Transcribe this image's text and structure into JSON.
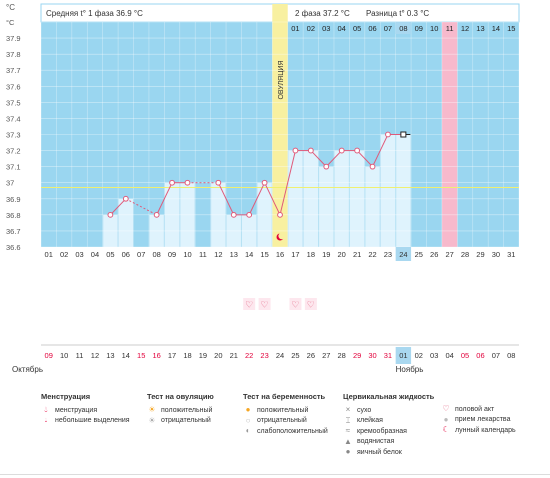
{
  "header": {
    "unit": "°C",
    "avg_phase1": "Средняя t° 1 фаза 36.9 °C",
    "phase2": "2 фаза 37.2 °C",
    "diff": "Разница t° 0.3 °C",
    "ovulation_label": "ОВУЛЯЦИЯ"
  },
  "cycle_days": [
    "01",
    "02",
    "03",
    "04",
    "05",
    "06",
    "07",
    "08",
    "09",
    "10",
    "11",
    "12",
    "13",
    "14",
    "15"
  ],
  "dates": [
    "01",
    "02",
    "03",
    "04",
    "05",
    "06",
    "07",
    "08",
    "09",
    "10",
    "11",
    "12",
    "13",
    "14",
    "15",
    "16",
    "17",
    "18",
    "19",
    "20",
    "21",
    "22",
    "23",
    "24",
    "25",
    "26",
    "27",
    "28",
    "29",
    "30",
    "31"
  ],
  "calendar_days": [
    "09",
    "10",
    "11",
    "12",
    "13",
    "14",
    "15",
    "16",
    "17",
    "18",
    "19",
    "20",
    "21",
    "22",
    "23",
    "24",
    "25",
    "26",
    "27",
    "28",
    "29",
    "30",
    "31",
    "01",
    "02",
    "03",
    "04",
    "05",
    "06",
    "07",
    "08"
  ],
  "months": {
    "first": "Октябрь",
    "second": "Ноябрь"
  },
  "chart_data": {
    "type": "line",
    "x": [
      "01",
      "02",
      "03",
      "04",
      "05",
      "06",
      "07",
      "08",
      "09",
      "10",
      "11",
      "12",
      "13",
      "14",
      "15",
      "16",
      "17",
      "18",
      "19",
      "20",
      "21",
      "22",
      "23",
      "24",
      "25",
      "26",
      "27",
      "28",
      "29",
      "30",
      "31"
    ],
    "series": [
      {
        "values": [
          null,
          null,
          null,
          null,
          36.8,
          36.9,
          null,
          36.8,
          37.0,
          37.0,
          null,
          37.0,
          36.8,
          36.8,
          37.0,
          36.8,
          37.2,
          37.2,
          37.1,
          37.2,
          37.2,
          37.1,
          37.3,
          37.3,
          null,
          null,
          null,
          null,
          null,
          null,
          null
        ]
      }
    ],
    "ylim": [
      36.6,
      38.0
    ],
    "yticks": [
      "36.6",
      "36.7",
      "36.8",
      "36.9",
      "37",
      "37.1",
      "37.2",
      "37.3",
      "37.4",
      "37.5",
      "37.6",
      "37.7",
      "37.8",
      "37.9",
      "°C"
    ],
    "coverline": 36.97,
    "ovulation_day": "16",
    "menstruation_day": "27",
    "current_day": "24",
    "intercourse_days": [
      "14",
      "15",
      "17",
      "18"
    ],
    "lunar_day": "16",
    "grid": true
  },
  "colors": {
    "background": "#9ad6f0",
    "bars": "#dff3fd",
    "line": "#e05a7a",
    "ovulation": "#f8f0a0",
    "menstruation": "#f7b9cc",
    "coverline": "#f0f070",
    "highlight": "#a9d8f0",
    "red_text": "#e2003b"
  },
  "legend": {
    "col1": {
      "title": "Менструация",
      "items": [
        "менструация",
        "небольшие выделения"
      ]
    },
    "col2": {
      "title": "Тест на овуляцию",
      "items": [
        "положительный",
        "отрицательный"
      ]
    },
    "col3": {
      "title": "Тест на беременность",
      "items": [
        "положительный",
        "отрицательный",
        "слабоположительный"
      ]
    },
    "col4": {
      "title": "Цервикальная жидкость",
      "items": [
        "сухо",
        "клейкая",
        "кремообразная",
        "водянистая",
        "яичный белок"
      ]
    },
    "col5": {
      "items": [
        "половой акт",
        "прием лекарства",
        "лунный календарь"
      ]
    }
  }
}
